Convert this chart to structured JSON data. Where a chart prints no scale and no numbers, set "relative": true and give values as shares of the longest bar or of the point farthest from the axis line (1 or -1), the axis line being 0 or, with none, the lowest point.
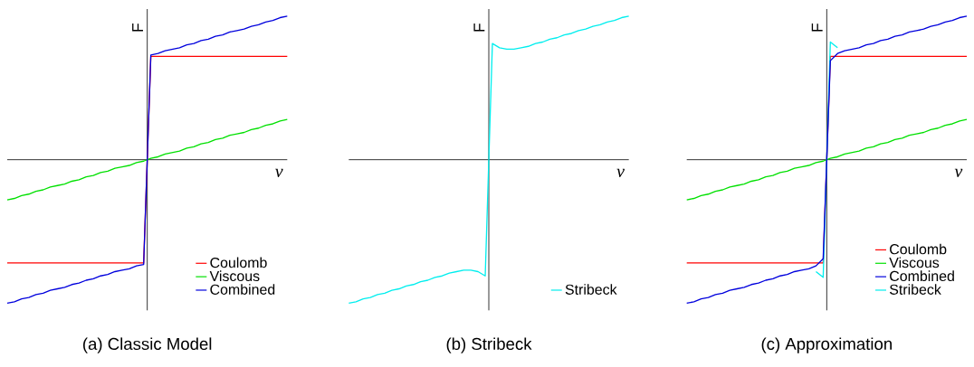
{
  "chart_data": [
    {
      "type": "line",
      "title": "(a) Classic Model",
      "xlabel": "v",
      "ylabel": "F",
      "relative": true,
      "legend": "bottom right",
      "categories": [
        null,
        null,
        null,
        null,
        null,
        null,
        null,
        null,
        null,
        null,
        null,
        null,
        null,
        null,
        null,
        null,
        null,
        null,
        null,
        null,
        null,
        null,
        null,
        null,
        null,
        null,
        null,
        null,
        null,
        null,
        null,
        null,
        null,
        null,
        null,
        null,
        null,
        null,
        null,
        null
      ],
      "series": [
        {
          "name": "Coulomb",
          "color": "#ff0000",
          "values": [
            -0.72,
            -0.72,
            -0.72,
            -0.72,
            -0.72,
            -0.72,
            -0.72,
            -0.72,
            -0.72,
            -0.72,
            -0.72,
            -0.72,
            -0.72,
            -0.72,
            -0.72,
            -0.72,
            -0.72,
            -0.72,
            -0.72,
            -0.72,
            0.72,
            0.72,
            0.72,
            0.72,
            0.72,
            0.72,
            0.72,
            0.72,
            0.72,
            0.72,
            0.72,
            0.72,
            0.72,
            0.72,
            0.72,
            0.72,
            0.72,
            0.72,
            0.72,
            0.72
          ]
        },
        {
          "name": "Viscous",
          "color": "#00e000",
          "values": [
            -0.28,
            -0.27,
            -0.25,
            -0.24,
            -0.22,
            -0.21,
            -0.19,
            -0.18,
            -0.17,
            -0.15,
            -0.14,
            -0.12,
            -0.11,
            -0.09,
            -0.08,
            -0.06,
            -0.05,
            -0.04,
            -0.02,
            -0.01,
            0.01,
            0.02,
            0.04,
            0.05,
            0.06,
            0.08,
            0.09,
            0.11,
            0.12,
            0.14,
            0.15,
            0.17,
            0.18,
            0.19,
            0.21,
            0.22,
            0.24,
            0.25,
            0.27,
            0.28
          ]
        },
        {
          "name": "Combined",
          "color": "#0000dd",
          "values": [
            -1,
            -0.99,
            -0.97,
            -0.96,
            -0.94,
            -0.93,
            -0.91,
            -0.9,
            -0.89,
            -0.87,
            -0.86,
            -0.84,
            -0.83,
            -0.81,
            -0.8,
            -0.78,
            -0.77,
            -0.76,
            -0.74,
            -0.73,
            0.73,
            0.74,
            0.76,
            0.77,
            0.78,
            0.8,
            0.81,
            0.83,
            0.84,
            0.86,
            0.87,
            0.89,
            0.9,
            0.91,
            0.93,
            0.94,
            0.96,
            0.97,
            0.99,
            1
          ]
        }
      ]
    },
    {
      "type": "line",
      "title": "(b) Stribeck",
      "xlabel": "v",
      "ylabel": "F",
      "relative": true,
      "legend": "bottom right",
      "categories": [
        null,
        null,
        null,
        null,
        null,
        null,
        null,
        null,
        null,
        null,
        null,
        null,
        null,
        null,
        null,
        null,
        null,
        null,
        null,
        null,
        null,
        null,
        null,
        null,
        null,
        null,
        null,
        null,
        null,
        null,
        null,
        null,
        null,
        null,
        null,
        null,
        null,
        null,
        null,
        null
      ],
      "series": [
        {
          "name": "Stribeck",
          "color": "#00eeee",
          "values": [
            -1,
            -0.99,
            -0.97,
            -0.96,
            -0.94,
            -0.93,
            -0.91,
            -0.9,
            -0.88,
            -0.87,
            -0.85,
            -0.84,
            -0.82,
            -0.81,
            -0.79,
            -0.78,
            -0.77,
            -0.77,
            -0.78,
            -0.81,
            0.81,
            0.78,
            0.77,
            0.77,
            0.78,
            0.79,
            0.81,
            0.82,
            0.84,
            0.85,
            0.87,
            0.88,
            0.9,
            0.91,
            0.93,
            0.94,
            0.96,
            0.97,
            0.99,
            1
          ]
        }
      ]
    },
    {
      "type": "line",
      "title": "(c) Approximation",
      "xlabel": "v",
      "ylabel": "F",
      "relative": true,
      "legend": "bottom right",
      "categories": [
        null,
        null,
        null,
        null,
        null,
        null,
        null,
        null,
        null,
        null,
        null,
        null,
        null,
        null,
        null,
        null,
        null,
        null,
        null,
        null,
        null,
        null,
        null,
        null,
        null,
        null,
        null,
        null,
        null,
        null,
        null,
        null,
        null,
        null,
        null,
        null,
        null,
        null,
        null,
        null
      ],
      "series": [
        {
          "name": "Coulomb",
          "color": "#ff0000",
          "values": [
            -0.72,
            -0.72,
            -0.72,
            -0.72,
            -0.72,
            -0.72,
            -0.72,
            -0.72,
            -0.72,
            -0.72,
            -0.72,
            -0.72,
            -0.72,
            -0.72,
            -0.72,
            -0.72,
            -0.72,
            -0.72,
            -0.72,
            -0.72,
            0.72,
            0.72,
            0.72,
            0.72,
            0.72,
            0.72,
            0.72,
            0.72,
            0.72,
            0.72,
            0.72,
            0.72,
            0.72,
            0.72,
            0.72,
            0.72,
            0.72,
            0.72,
            0.72,
            0.72
          ]
        },
        {
          "name": "Viscous",
          "color": "#00e000",
          "values": [
            -0.28,
            -0.27,
            -0.25,
            -0.24,
            -0.22,
            -0.21,
            -0.19,
            -0.18,
            -0.17,
            -0.15,
            -0.14,
            -0.12,
            -0.11,
            -0.09,
            -0.08,
            -0.06,
            -0.05,
            -0.04,
            -0.02,
            -0.01,
            0.01,
            0.02,
            0.04,
            0.05,
            0.06,
            0.08,
            0.09,
            0.11,
            0.12,
            0.14,
            0.15,
            0.17,
            0.18,
            0.19,
            0.21,
            0.22,
            0.24,
            0.25,
            0.27,
            0.28
          ]
        },
        {
          "name": "Combined",
          "color": "#0000dd",
          "values": [
            -1,
            -0.99,
            -0.97,
            -0.96,
            -0.94,
            -0.93,
            -0.91,
            -0.9,
            -0.89,
            -0.87,
            -0.86,
            -0.84,
            -0.83,
            -0.81,
            -0.8,
            -0.78,
            -0.77,
            -0.76,
            -0.74,
            -0.69,
            0.69,
            0.74,
            0.76,
            0.77,
            0.78,
            0.8,
            0.81,
            0.83,
            0.84,
            0.86,
            0.87,
            0.89,
            0.9,
            0.91,
            0.93,
            0.94,
            0.96,
            0.97,
            0.99,
            1
          ]
        },
        {
          "name": "Stribeck",
          "color": "#00eeee",
          "values": [
            null,
            null,
            null,
            null,
            null,
            null,
            null,
            null,
            null,
            null,
            null,
            null,
            null,
            null,
            null,
            null,
            null,
            null,
            -0.78,
            -0.82,
            0.82,
            0.78,
            null,
            null,
            null,
            null,
            null,
            null,
            null,
            null,
            null,
            null,
            null,
            null,
            null,
            null,
            null,
            null,
            null,
            null
          ]
        }
      ]
    }
  ]
}
